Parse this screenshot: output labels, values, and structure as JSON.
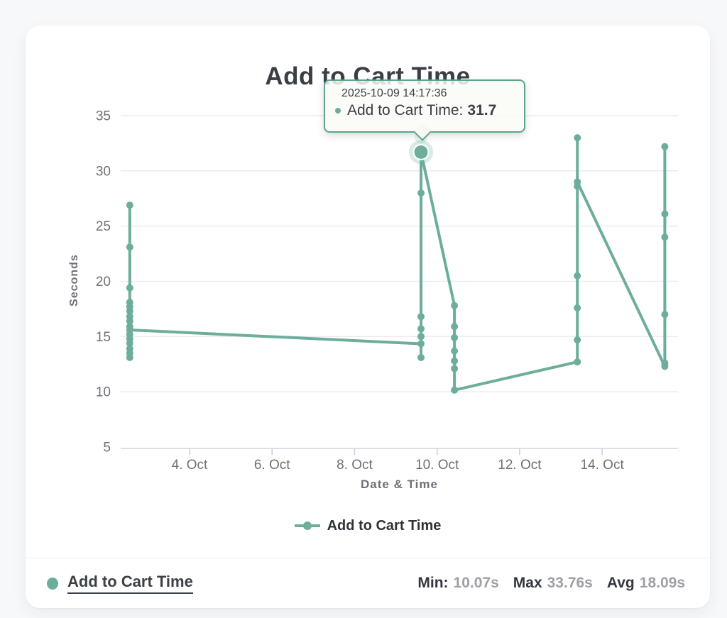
{
  "chart": {
    "title": "Add to Cart Time",
    "xlabel": "Date & Time",
    "ylabel": "Seconds"
  },
  "chart_data": {
    "type": "line",
    "title": "Add to Cart Time",
    "xlabel": "Date & Time",
    "ylabel": "Seconds",
    "grid": "horizontal",
    "legend_position": "bottom",
    "ylim": [
      5,
      35
    ],
    "xlim": [
      2.33,
      15.84
    ],
    "x_unit": "day of October 2025",
    "y_ticks": [
      35,
      30,
      25,
      20,
      15,
      10,
      5
    ],
    "x_ticks": [
      {
        "day": 4,
        "label": "4. Oct"
      },
      {
        "day": 6,
        "label": "6. Oct"
      },
      {
        "day": 8,
        "label": "8. Oct"
      },
      {
        "day": 10,
        "label": "10. Oct"
      },
      {
        "day": 12,
        "label": "12. Oct"
      },
      {
        "day": 14,
        "label": "14. Oct"
      }
    ],
    "point_format": "[day_of_october, seconds]",
    "series": [
      {
        "name": "Add to Cart Time",
        "color": "#6cae9b",
        "points": [
          [
            2.55,
            13.1
          ],
          [
            2.55,
            18.1
          ],
          [
            2.55,
            13.5
          ],
          [
            2.55,
            26.9
          ],
          [
            2.55,
            23.1
          ],
          [
            2.55,
            14.8
          ],
          [
            2.55,
            19.4
          ],
          [
            2.55,
            17.7
          ],
          [
            2.55,
            13.9
          ],
          [
            2.55,
            17.3
          ],
          [
            2.55,
            16.8
          ],
          [
            2.55,
            14.4
          ],
          [
            2.55,
            16.4
          ],
          [
            2.55,
            15.9
          ],
          [
            2.55,
            15.2
          ],
          [
            2.55,
            15.6
          ],
          [
            9.61,
            14.35
          ],
          [
            9.61,
            13.1
          ],
          [
            9.61,
            15.0
          ],
          [
            9.61,
            16.8
          ],
          [
            9.61,
            15.7
          ],
          [
            9.61,
            28.0
          ],
          [
            9.61,
            31.7
          ],
          [
            10.42,
            17.8
          ],
          [
            10.42,
            15.9
          ],
          [
            10.42,
            14.9
          ],
          [
            10.42,
            13.7
          ],
          [
            10.42,
            12.8
          ],
          [
            10.42,
            12.1
          ],
          [
            10.42,
            10.15
          ],
          [
            13.4,
            12.7
          ],
          [
            13.4,
            14.7
          ],
          [
            13.4,
            17.6
          ],
          [
            13.4,
            20.5
          ],
          [
            13.4,
            33.0
          ],
          [
            13.4,
            28.6
          ],
          [
            13.4,
            29.0
          ],
          [
            15.52,
            12.3
          ],
          [
            15.52,
            32.2
          ],
          [
            15.52,
            17.0
          ],
          [
            15.52,
            26.1
          ],
          [
            15.52,
            24.0
          ],
          [
            15.52,
            12.6
          ]
        ]
      }
    ],
    "highlight_point": {
      "x": 9.61,
      "y": 31.7
    },
    "stats": {
      "min": 10.07,
      "max": 33.76,
      "avg": 18.09,
      "unit": "s"
    }
  },
  "tooltip": {
    "date": "2025-10-09 14:17:36",
    "series_label": "Add to Cart Time:",
    "value": "31.7"
  },
  "legend": {
    "label": "Add to Cart Time"
  },
  "footer": {
    "series_label": "Add to Cart Time",
    "stats": [
      {
        "label": "Min:",
        "value": "10.07s"
      },
      {
        "label": "Max",
        "value": "33.76s"
      },
      {
        "label": "Avg",
        "value": "18.09s"
      }
    ]
  },
  "colors": {
    "accent": "#6cae9b",
    "tooltip_border": "#5ea390",
    "title_text": "#3a3f45",
    "axis_text": "#6e7076",
    "grid": "#e9ecef",
    "axis_line": "#cfd6dc",
    "tick": "#c6cfd8",
    "stat_value_text": "#9ea0a5"
  }
}
